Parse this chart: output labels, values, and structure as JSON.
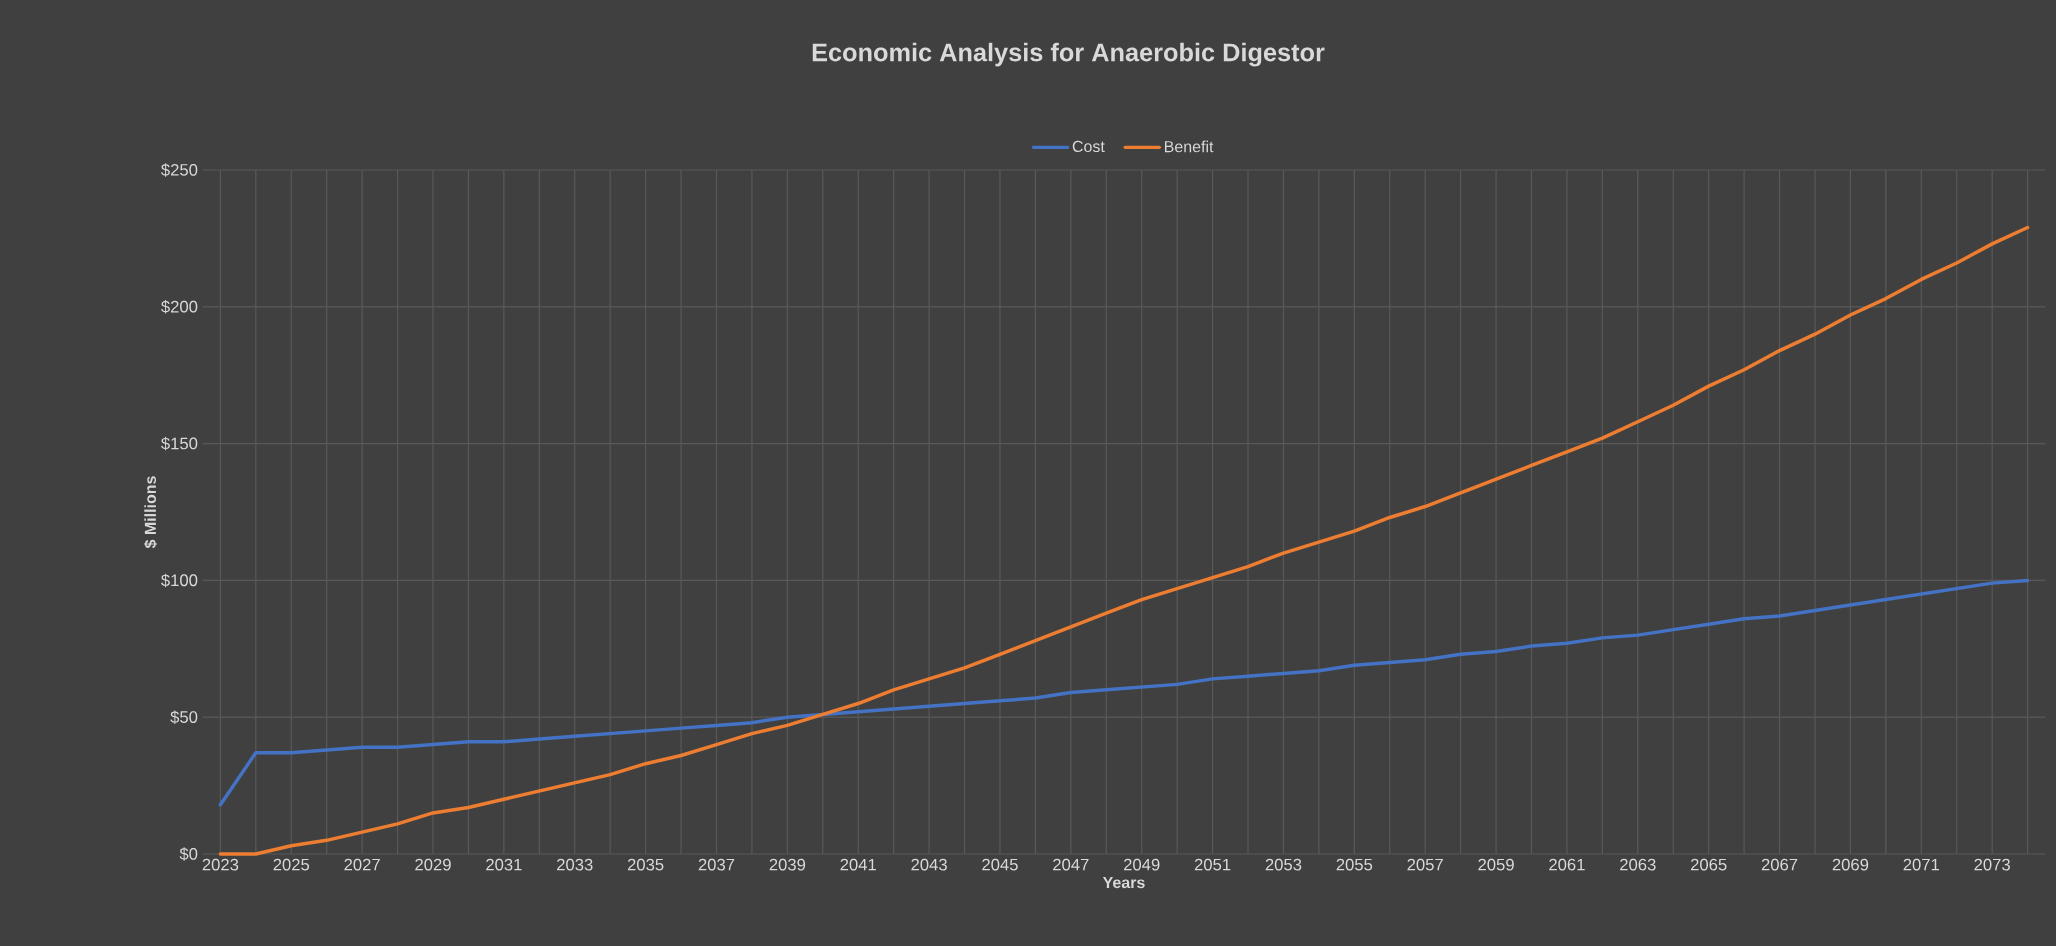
{
  "chart_data": {
    "type": "line",
    "title": "Economic Analysis for Anaerobic Digestor",
    "xlabel": "Years",
    "ylabel": "$ Millions",
    "categories": [
      "2023",
      null,
      "2025",
      null,
      "2027",
      null,
      "2029",
      null,
      "2031",
      null,
      "2033",
      null,
      "2035",
      null,
      "2037",
      null,
      "2039",
      null,
      "2041",
      null,
      "2043",
      null,
      "2045",
      null,
      "2047",
      null,
      "2049",
      null,
      "2051",
      null,
      "2053",
      null,
      "2055",
      null,
      "2057",
      null,
      "2059",
      null,
      "2061",
      null,
      "2063",
      null,
      "2065",
      null,
      "2067",
      null,
      "2069",
      null,
      "2071",
      null,
      "2073",
      null
    ],
    "series": [
      {
        "name": "Cost",
        "color": "#4472c4",
        "values": [
          18,
          37,
          37,
          38,
          39,
          39,
          40,
          41,
          41,
          42,
          43,
          44,
          45,
          46,
          47,
          48,
          50,
          51,
          52,
          53,
          54,
          55,
          56,
          57,
          59,
          60,
          61,
          62,
          64,
          65,
          66,
          67,
          69,
          70,
          71,
          73,
          74,
          76,
          77,
          79,
          80,
          82,
          84,
          86,
          87,
          89,
          91,
          93,
          95,
          97,
          99,
          100
        ]
      },
      {
        "name": "Benefit",
        "color": "#ed7d31",
        "values": [
          0,
          0,
          3,
          5,
          8,
          11,
          15,
          17,
          20,
          23,
          26,
          29,
          33,
          36,
          40,
          44,
          47,
          51,
          55,
          60,
          64,
          68,
          73,
          78,
          83,
          88,
          93,
          97,
          101,
          105,
          110,
          114,
          118,
          123,
          127,
          132,
          137,
          142,
          147,
          152,
          158,
          164,
          171,
          177,
          184,
          190,
          197,
          203,
          210,
          216,
          223,
          229
        ]
      }
    ],
    "ylim": [
      0,
      250
    ],
    "yticks": [
      {
        "value": 0,
        "label": "$0"
      },
      {
        "value": 50,
        "label": "$50"
      },
      {
        "value": 100,
        "label": "$100"
      },
      {
        "value": 150,
        "label": "$150"
      },
      {
        "value": 200,
        "label": "$200"
      },
      {
        "value": 250,
        "label": "$250"
      }
    ],
    "grid": true,
    "legend": "top",
    "marker": "none",
    "line_style": "solid"
  }
}
